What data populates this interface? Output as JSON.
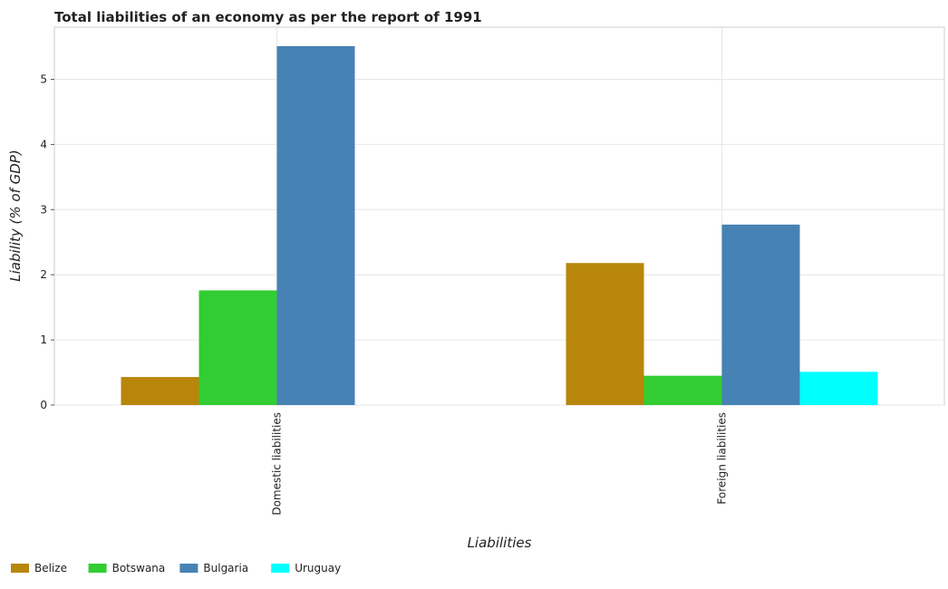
{
  "chart_data": {
    "type": "bar",
    "title": "Total liabilities of an economy as per the report of 1991",
    "xlabel": "Liabilities",
    "ylabel": "Liability (% of GDP)",
    "categories": [
      "Domestic liabilities",
      "Foreign liabilities"
    ],
    "series": [
      {
        "name": "Belize",
        "color": "#b8860b",
        "values": [
          0.43,
          2.18
        ]
      },
      {
        "name": "Botswana",
        "color": "#32cd32",
        "values": [
          1.76,
          0.45
        ]
      },
      {
        "name": "Bulgaria",
        "color": "#4682b4",
        "values": [
          5.51,
          2.77
        ]
      },
      {
        "name": "Uruguay",
        "color": "#00ffff",
        "values": [
          0,
          0.51
        ]
      }
    ],
    "ylim": [
      0,
      5.8
    ],
    "yticks": [
      0,
      1,
      2,
      3,
      4,
      5
    ],
    "grid": true,
    "legend_position": "bottom-left"
  }
}
